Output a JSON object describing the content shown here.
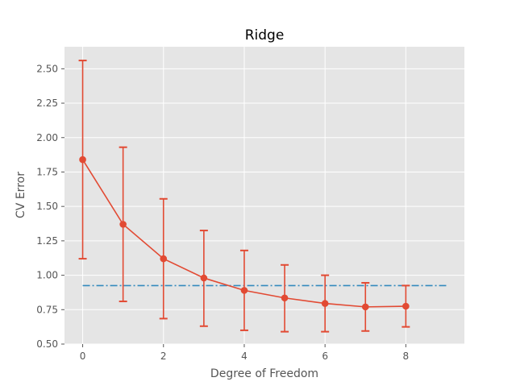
{
  "chart_data": {
    "type": "line",
    "title": "Ridge",
    "xlabel": "Degree of Freedom",
    "ylabel": "CV Error",
    "xlim": [
      -0.45,
      9.45
    ],
    "ylim": [
      0.5,
      2.66
    ],
    "xticks": [
      0,
      2,
      4,
      6,
      8
    ],
    "yticks": [
      0.5,
      0.75,
      1.0,
      1.25,
      1.5,
      1.75,
      2.0,
      2.25,
      2.5
    ],
    "xtick_labels": [
      "0",
      "2",
      "4",
      "6",
      "8"
    ],
    "ytick_labels": [
      "0.50",
      "0.75",
      "1.00",
      "1.25",
      "1.50",
      "1.75",
      "2.00",
      "2.25",
      "2.50"
    ],
    "grid": true,
    "series": [
      {
        "x": [
          0,
          1,
          2,
          3,
          4,
          5,
          6,
          7,
          8
        ],
        "y": [
          1.84,
          1.37,
          1.12,
          0.98,
          0.89,
          0.835,
          0.795,
          0.77,
          0.775
        ],
        "err_low": [
          1.12,
          0.81,
          0.685,
          0.63,
          0.6,
          0.59,
          0.59,
          0.595,
          0.625
        ],
        "err_high": [
          2.56,
          1.93,
          1.555,
          1.325,
          1.18,
          1.075,
          1.0,
          0.945,
          0.925
        ],
        "color": "#E24A33",
        "marker": "circle"
      }
    ],
    "reference_line": {
      "y": 0.925,
      "x_range": [
        0,
        9
      ],
      "style": "dash-dot",
      "color": "#348ABD"
    },
    "colors": {
      "plot_background": "#E5E5E5",
      "grid": "#FFFFFF",
      "tick_text": "#555555"
    }
  }
}
